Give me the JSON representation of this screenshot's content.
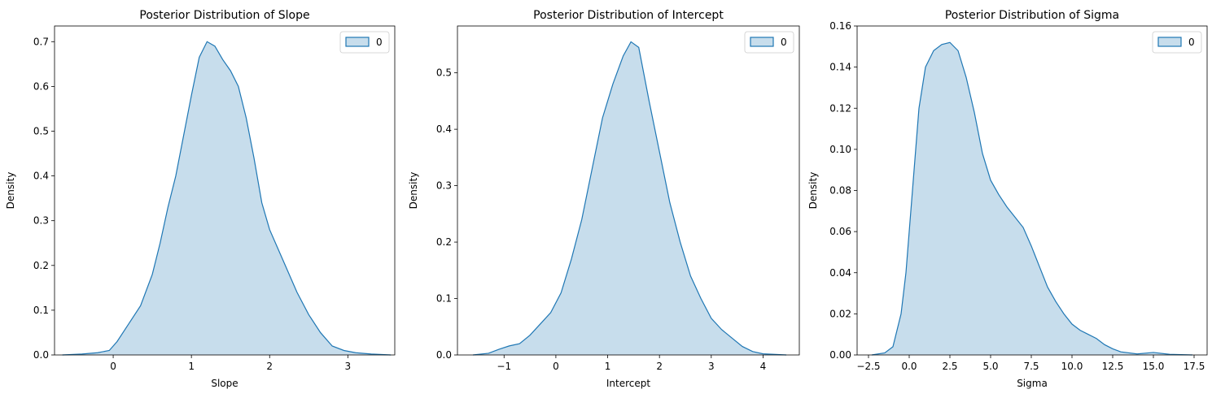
{
  "colors": {
    "line": "#1f77b4",
    "fill": "#1f77b4",
    "fill_opacity": 0.25
  },
  "chart_data": [
    {
      "type": "area",
      "title": "Posterior Distribution of Slope",
      "xlabel": "Slope",
      "ylabel": "Density",
      "xlim": [
        -0.75,
        3.6
      ],
      "ylim": [
        0,
        0.735
      ],
      "xticks": [
        0,
        1,
        2,
        3
      ],
      "xtick_labels": [
        "0",
        "1",
        "2",
        "3"
      ],
      "yticks": [
        0,
        0.1,
        0.2,
        0.3,
        0.4,
        0.5,
        0.6,
        0.7
      ],
      "ytick_labels": [
        "0.0",
        "0.1",
        "0.2",
        "0.3",
        "0.4",
        "0.5",
        "0.6",
        "0.7"
      ],
      "legend": {
        "position": "top-right",
        "entries": [
          "0"
        ]
      },
      "series": [
        {
          "name": "0",
          "x": [
            -0.65,
            -0.4,
            -0.2,
            -0.05,
            0.05,
            0.2,
            0.35,
            0.5,
            0.6,
            0.7,
            0.8,
            0.9,
            1.0,
            1.1,
            1.2,
            1.3,
            1.4,
            1.5,
            1.6,
            1.7,
            1.8,
            1.9,
            2.0,
            2.1,
            2.2,
            2.35,
            2.5,
            2.65,
            2.8,
            2.95,
            3.1,
            3.3,
            3.55
          ],
          "y": [
            0.0,
            0.002,
            0.005,
            0.01,
            0.03,
            0.07,
            0.11,
            0.18,
            0.25,
            0.33,
            0.4,
            0.49,
            0.58,
            0.665,
            0.7,
            0.69,
            0.66,
            0.635,
            0.6,
            0.53,
            0.44,
            0.34,
            0.28,
            0.24,
            0.2,
            0.14,
            0.09,
            0.05,
            0.02,
            0.01,
            0.005,
            0.002,
            0.0
          ]
        }
      ]
    },
    {
      "type": "area",
      "title": "Posterior Distribution of Intercept",
      "xlabel": "Intercept",
      "ylabel": "Density",
      "xlim": [
        -1.9,
        4.7
      ],
      "ylim": [
        0,
        0.583
      ],
      "xticks": [
        -1,
        0,
        1,
        2,
        3,
        4
      ],
      "xtick_labels": [
        "−1",
        "0",
        "1",
        "2",
        "3",
        "4"
      ],
      "yticks": [
        0,
        0.1,
        0.2,
        0.3,
        0.4,
        0.5
      ],
      "ytick_labels": [
        "0.0",
        "0.1",
        "0.2",
        "0.3",
        "0.4",
        "0.5"
      ],
      "legend": {
        "position": "top-right",
        "entries": [
          "0"
        ]
      },
      "series": [
        {
          "name": "0",
          "x": [
            -1.6,
            -1.3,
            -1.1,
            -0.9,
            -0.7,
            -0.5,
            -0.3,
            -0.1,
            0.1,
            0.3,
            0.5,
            0.7,
            0.9,
            1.1,
            1.3,
            1.45,
            1.6,
            1.8,
            2.0,
            2.2,
            2.4,
            2.6,
            2.8,
            3.0,
            3.2,
            3.4,
            3.6,
            3.8,
            4.0,
            4.45
          ],
          "y": [
            0.0,
            0.003,
            0.01,
            0.016,
            0.02,
            0.035,
            0.055,
            0.075,
            0.11,
            0.17,
            0.24,
            0.33,
            0.42,
            0.48,
            0.53,
            0.555,
            0.545,
            0.45,
            0.36,
            0.27,
            0.2,
            0.14,
            0.1,
            0.065,
            0.045,
            0.03,
            0.015,
            0.006,
            0.002,
            0.0
          ]
        }
      ]
    },
    {
      "type": "area",
      "title": "Posterior Distribution of Sigma",
      "xlabel": "Sigma",
      "ylabel": "Density",
      "xlim": [
        -3.2,
        18.3
      ],
      "ylim": [
        0,
        0.16
      ],
      "xticks": [
        -2.5,
        0,
        2.5,
        5,
        7.5,
        10,
        12.5,
        15,
        17.5
      ],
      "xtick_labels": [
        "−2.5",
        "0.0",
        "2.5",
        "5.0",
        "7.5",
        "10.0",
        "12.5",
        "15.0",
        "17.5"
      ],
      "yticks": [
        0,
        0.02,
        0.04,
        0.06,
        0.08,
        0.1,
        0.12,
        0.14,
        0.16
      ],
      "ytick_labels": [
        "0.00",
        "0.02",
        "0.04",
        "0.06",
        "0.08",
        "0.10",
        "0.12",
        "0.14",
        "0.16"
      ],
      "legend": {
        "position": "top-right",
        "entries": [
          "0"
        ]
      },
      "series": [
        {
          "name": "0",
          "x": [
            -2.3,
            -1.5,
            -1.0,
            -0.5,
            -0.2,
            0.0,
            0.3,
            0.6,
            1.0,
            1.5,
            2.0,
            2.5,
            3.0,
            3.5,
            4.0,
            4.5,
            5.0,
            5.5,
            6.0,
            6.5,
            7.0,
            7.5,
            8.0,
            8.5,
            9.0,
            9.5,
            10.0,
            10.5,
            11.0,
            11.5,
            12.0,
            12.5,
            13.0,
            14.0,
            15.0,
            16.0,
            17.4
          ],
          "y": [
            0.0,
            0.001,
            0.004,
            0.02,
            0.04,
            0.06,
            0.09,
            0.12,
            0.14,
            0.148,
            0.151,
            0.152,
            0.148,
            0.135,
            0.118,
            0.098,
            0.085,
            0.078,
            0.072,
            0.067,
            0.062,
            0.053,
            0.043,
            0.033,
            0.026,
            0.02,
            0.015,
            0.012,
            0.01,
            0.008,
            0.005,
            0.003,
            0.0015,
            0.0005,
            0.0012,
            0.0003,
            0.0
          ]
        }
      ]
    }
  ]
}
